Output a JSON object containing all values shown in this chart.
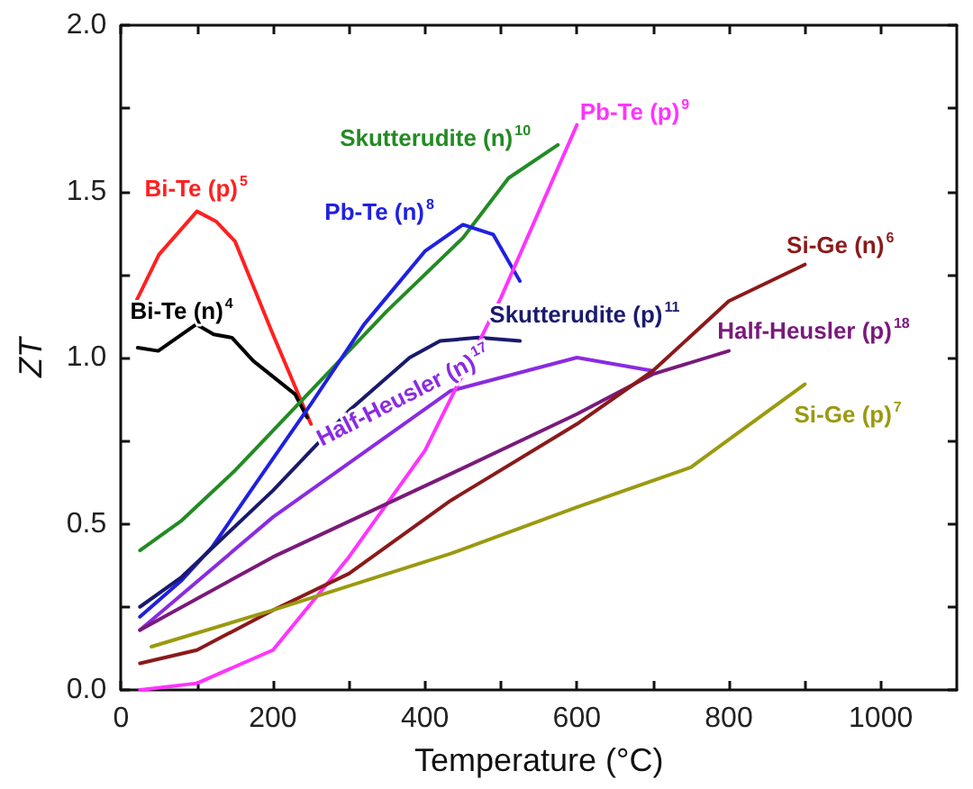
{
  "chart_data": {
    "type": "line",
    "xlabel": "Temperature (°C)",
    "ylabel": "ZT",
    "xlim": [
      0,
      1100
    ],
    "ylim": [
      0,
      2.0
    ],
    "xticks": [
      0,
      {
        "value": 100,
        "label": null
      },
      200,
      {
        "value": 300,
        "label": null
      },
      400,
      {
        "value": 500,
        "label": null
      },
      600,
      {
        "value": 700,
        "label": null
      },
      800,
      {
        "value": 900,
        "label": null
      },
      1000
    ],
    "yticks": [
      {
        "value": 0,
        "label": "0.0"
      },
      {
        "value": 0.25,
        "label": null
      },
      {
        "value": 0.5,
        "label": "0.5"
      },
      {
        "value": 0.75,
        "label": null
      },
      {
        "value": 1.0,
        "label": "1.0"
      },
      {
        "value": 1.25,
        "label": null
      },
      {
        "value": 1.5,
        "label": "1.5"
      },
      {
        "value": 1.75,
        "label": null
      },
      {
        "value": 2.0,
        "label": "2.0"
      }
    ],
    "grid": false,
    "marker": "none",
    "line_style": "solid",
    "series": [
      {
        "name": "Bi-Te (p)$^{5}$",
        "color": "#ff2020",
        "x": [
          20,
          50,
          100,
          125,
          150,
          200,
          250
        ],
        "values": [
          1.17,
          1.31,
          1.44,
          1.41,
          1.35,
          1.07,
          0.8
        ]
      },
      {
        "name": "Bi-Te (n)$^{4}$",
        "color": "#000000",
        "x": [
          22,
          49,
          99,
          122,
          146,
          174,
          229,
          245
        ],
        "values": [
          1.03,
          1.02,
          1.1,
          1.07,
          1.06,
          0.99,
          0.89,
          0.82
        ]
      },
      {
        "name": "Skutterudite (n)$^{10}$",
        "color": "#238b23",
        "x": [
          25,
          80,
          150,
          250,
          350,
          450,
          510,
          575
        ],
        "values": [
          0.42,
          0.51,
          0.66,
          0.9,
          1.14,
          1.36,
          1.54,
          1.64
        ]
      },
      {
        "name": "Pb-Te (n)$^{8}$",
        "color": "#2020e0",
        "x": [
          25,
          80,
          120,
          180,
          250,
          320,
          400,
          450,
          490,
          525
        ],
        "values": [
          0.22,
          0.33,
          0.43,
          0.63,
          0.86,
          1.1,
          1.32,
          1.4,
          1.37,
          1.23
        ]
      },
      {
        "name": "Skutterudite (p)$^{11}$",
        "color": "#1a1a6e",
        "x": [
          25,
          80,
          200,
          300,
          380,
          420,
          470,
          525
        ],
        "values": [
          0.25,
          0.34,
          0.6,
          0.84,
          1.0,
          1.05,
          1.06,
          1.05
        ]
      },
      {
        "name": "Half-Heusler (n)$^{17}$",
        "color": "#8a2be2",
        "x": [
          25,
          200,
          434,
          600,
          700
        ],
        "values": [
          0.18,
          0.52,
          0.9,
          1.0,
          0.96
        ]
      },
      {
        "name": "Pb-Te (p)$^{9}$",
        "color": "#ff33ff",
        "x": [
          25,
          100,
          200,
          300,
          400,
          500,
          600
        ],
        "values": [
          0.0,
          0.02,
          0.12,
          0.4,
          0.72,
          1.18,
          1.7
        ]
      },
      {
        "name": "Half-Heusler (p)$^{18}$",
        "color": "#7a1a7a",
        "x": [
          25,
          200,
          434,
          600,
          700,
          800
        ],
        "values": [
          0.18,
          0.4,
          0.65,
          0.83,
          0.95,
          1.02
        ]
      },
      {
        "name": "Si-Ge (n)$^{6}$",
        "color": "#8b1a1a",
        "x": [
          25,
          100,
          200,
          300,
          434,
          600,
          700,
          800,
          900
        ],
        "values": [
          0.08,
          0.12,
          0.24,
          0.35,
          0.57,
          0.8,
          0.96,
          1.17,
          1.28
        ]
      },
      {
        "name": "Si-Ge (p)$^{7}$",
        "color": "#9a9a10",
        "x": [
          40,
          200,
          434,
          600,
          750,
          900
        ],
        "values": [
          0.13,
          0.24,
          0.41,
          0.55,
          0.67,
          0.92
        ]
      }
    ]
  }
}
